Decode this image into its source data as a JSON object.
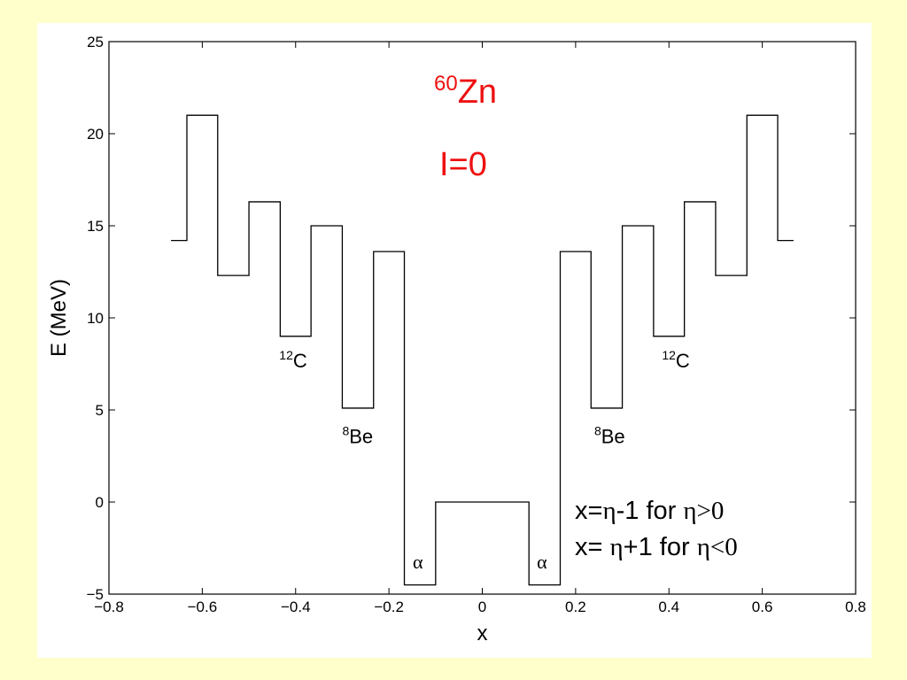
{
  "chart_data": {
    "type": "line",
    "title": {
      "sup": "60",
      "main": "Zn"
    },
    "subtitle": "I=0",
    "xlabel": "x",
    "ylabel": "E (MeV)",
    "xlim": [
      -0.8,
      0.8
    ],
    "ylim": [
      -5,
      25
    ],
    "xticks": [
      -0.8,
      -0.6,
      -0.4,
      -0.2,
      0,
      0.2,
      0.4,
      0.6,
      0.8
    ],
    "xtick_labels": [
      "−0.8",
      "−0.6",
      "−0.4",
      "−0.2",
      "0",
      "0.2",
      "0.4",
      "0.6",
      "0.8"
    ],
    "yticks": [
      -5,
      0,
      5,
      10,
      15,
      20,
      25
    ],
    "ytick_labels": [
      "−5",
      "0",
      "5",
      "10",
      "15",
      "20",
      "25"
    ],
    "grid": false,
    "line_color": "#000000",
    "series": [
      {
        "step_segments": [
          {
            "x0": -0.667,
            "x1": -0.633,
            "y": 14.2
          },
          {
            "x0": -0.633,
            "x1": -0.567,
            "y": 21.0
          },
          {
            "x0": -0.567,
            "x1": -0.5,
            "y": 12.3
          },
          {
            "x0": -0.5,
            "x1": -0.433,
            "y": 16.3
          },
          {
            "x0": -0.433,
            "x1": -0.367,
            "y": 9.0
          },
          {
            "x0": -0.367,
            "x1": -0.3,
            "y": 15.0
          },
          {
            "x0": -0.3,
            "x1": -0.233,
            "y": 5.1
          },
          {
            "x0": -0.233,
            "x1": -0.167,
            "y": 13.6
          },
          {
            "x0": -0.167,
            "x1": -0.1,
            "y": -4.5
          },
          {
            "x0": -0.1,
            "x1": 0.1,
            "y": 0.0
          },
          {
            "x0": 0.1,
            "x1": 0.167,
            "y": -4.5
          },
          {
            "x0": 0.167,
            "x1": 0.233,
            "y": 13.6
          },
          {
            "x0": 0.233,
            "x1": 0.3,
            "y": 5.1
          },
          {
            "x0": 0.3,
            "x1": 0.367,
            "y": 15.0
          },
          {
            "x0": 0.367,
            "x1": 0.433,
            "y": 9.0
          },
          {
            "x0": 0.433,
            "x1": 0.5,
            "y": 16.3
          },
          {
            "x0": 0.5,
            "x1": 0.567,
            "y": 12.3
          },
          {
            "x0": 0.567,
            "x1": 0.633,
            "y": 21.0
          },
          {
            "x0": 0.633,
            "x1": 0.667,
            "y": 14.2
          }
        ]
      }
    ],
    "annotations": [
      {
        "sup": "12",
        "text": "C",
        "x": -0.435,
        "y": 7.3,
        "greek": false
      },
      {
        "sup": "8",
        "text": "Be",
        "x": -0.3,
        "y": 3.2,
        "greek": false
      },
      {
        "sup": "",
        "text": "α",
        "x": -0.149,
        "y": -3.6,
        "greek": true
      },
      {
        "sup": "",
        "text": "α",
        "x": 0.117,
        "y": -3.6,
        "greek": true
      },
      {
        "sup": "8",
        "text": "Be",
        "x": 0.24,
        "y": 3.2,
        "greek": false
      },
      {
        "sup": "12",
        "text": "C",
        "x": 0.385,
        "y": 7.3,
        "greek": false
      }
    ],
    "notes": [
      {
        "lhs": "x=",
        "eta1": "η",
        "mid": "-1 for ",
        "eta2": "η",
        "rel": ">0"
      },
      {
        "lhs": "x= ",
        "eta1": "η",
        "mid": "+1 for ",
        "eta2": "η",
        "rel": "<0"
      }
    ]
  }
}
